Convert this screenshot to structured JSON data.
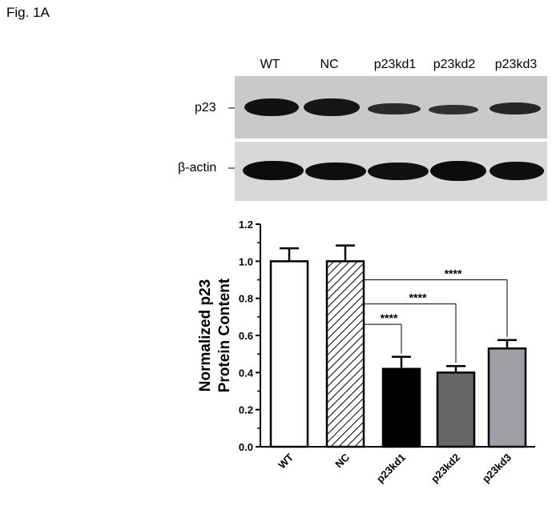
{
  "figure_label": "Fig. 1A",
  "blot": {
    "lanes": [
      "WT",
      "NC",
      "p23kd1",
      "p23kd2",
      "p23kd3"
    ],
    "rows": [
      {
        "label": "p23",
        "band_intensity": [
          1.0,
          1.0,
          0.42,
          0.4,
          0.53
        ]
      },
      {
        "label": "β-actin",
        "band_intensity": [
          1.0,
          1.0,
          1.0,
          1.0,
          1.0
        ]
      }
    ]
  },
  "chart_data": {
    "type": "bar",
    "categories": [
      "WT",
      "NC",
      "p23kd1",
      "p23kd2",
      "p23kd3"
    ],
    "values": [
      1.0,
      1.0,
      0.42,
      0.4,
      0.53
    ],
    "errors": [
      0.07,
      0.085,
      0.065,
      0.035,
      0.045
    ],
    "bar_colors": [
      "#ffffff",
      "hatched",
      "#000000",
      "#666666",
      "#9e9ea4"
    ],
    "ylabel": "Normalized p23\nProtein Content",
    "xlabel": "",
    "ylim": [
      0.0,
      1.2
    ],
    "yticks": [
      "0.0",
      "0.2",
      "0.4",
      "0.6",
      "0.8",
      "1.0",
      "1.2"
    ],
    "grid": false,
    "significance": [
      {
        "from": "NC",
        "to": "p23kd1",
        "label": "****"
      },
      {
        "from": "NC",
        "to": "p23kd2",
        "label": "****"
      },
      {
        "from": "NC",
        "to": "p23kd3",
        "label": "****"
      }
    ]
  }
}
